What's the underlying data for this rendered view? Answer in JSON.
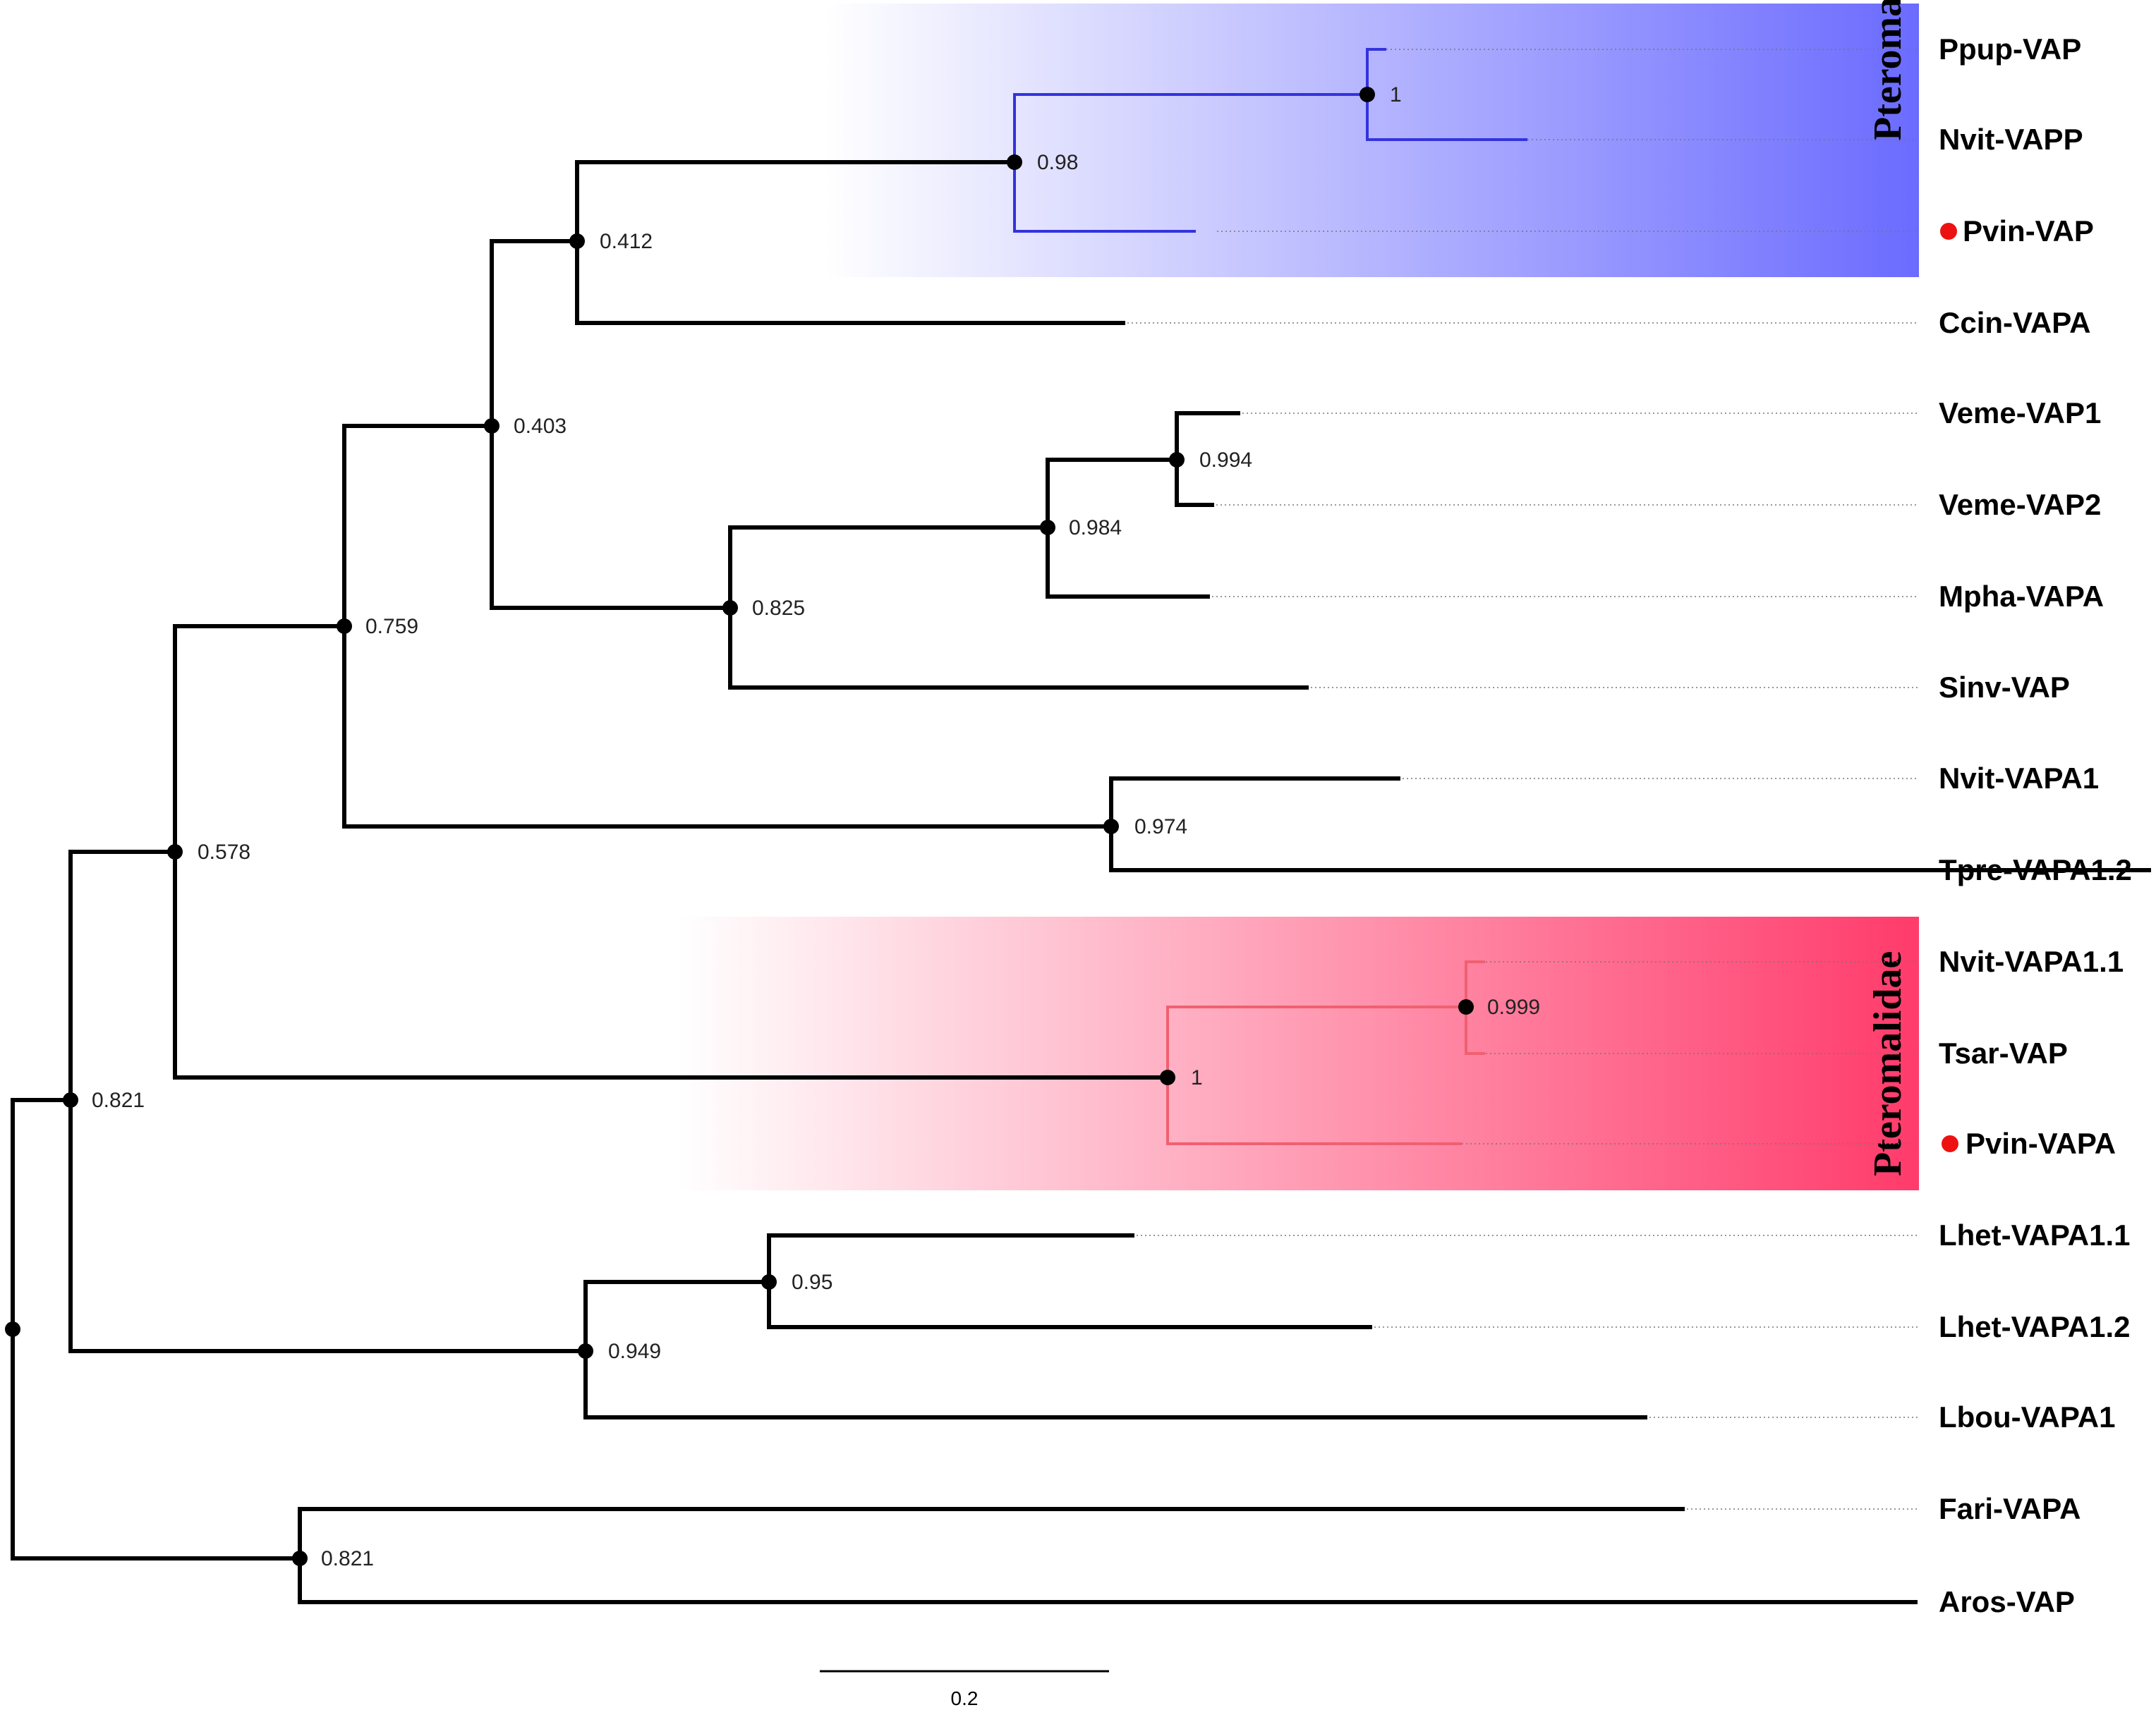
{
  "tree": {
    "taxa": [
      {
        "label": "Ppup-VAP",
        "marked": false
      },
      {
        "label": "Nvit-VAPP",
        "marked": false
      },
      {
        "label": "Pvin-VAP",
        "marked": true
      },
      {
        "label": "Ccin-VAPA",
        "marked": false
      },
      {
        "label": "Veme-VAP1",
        "marked": false
      },
      {
        "label": "Veme-VAP2",
        "marked": false
      },
      {
        "label": "Mpha-VAPA",
        "marked": false
      },
      {
        "label": "Sinv-VAP",
        "marked": false
      },
      {
        "label": "Nvit-VAPA1",
        "marked": false
      },
      {
        "label": "Tpre-VAPA1.2",
        "marked": false
      },
      {
        "label": "Nvit-VAPA1.1",
        "marked": false
      },
      {
        "label": "Tsar-VAP",
        "marked": false
      },
      {
        "label": "Pvin-VAPA",
        "marked": true
      },
      {
        "label": "Lhet-VAPA1.1",
        "marked": false
      },
      {
        "label": "Lhet-VAPA1.2",
        "marked": false
      },
      {
        "label": "Lbou-VAPA1",
        "marked": false
      },
      {
        "label": "Fari-VAPA",
        "marked": false
      },
      {
        "label": "Aros-VAP",
        "marked": false
      }
    ],
    "support_values": [
      "1",
      "0.98",
      "0.412",
      "0.403",
      "0.994",
      "0.984",
      "0.825",
      "0.759",
      "0.974",
      "0.578",
      "0.999",
      "1",
      "0.95",
      "0.949",
      "0.821",
      "0.821"
    ],
    "clades": [
      {
        "title": "Pteromalidae",
        "color": "#6b6bff"
      },
      {
        "title": "Pteromalidae",
        "color": "#ff3b6b"
      }
    ],
    "scale_bar": {
      "label": "0.2"
    },
    "marker_color": "#ee1111"
  }
}
